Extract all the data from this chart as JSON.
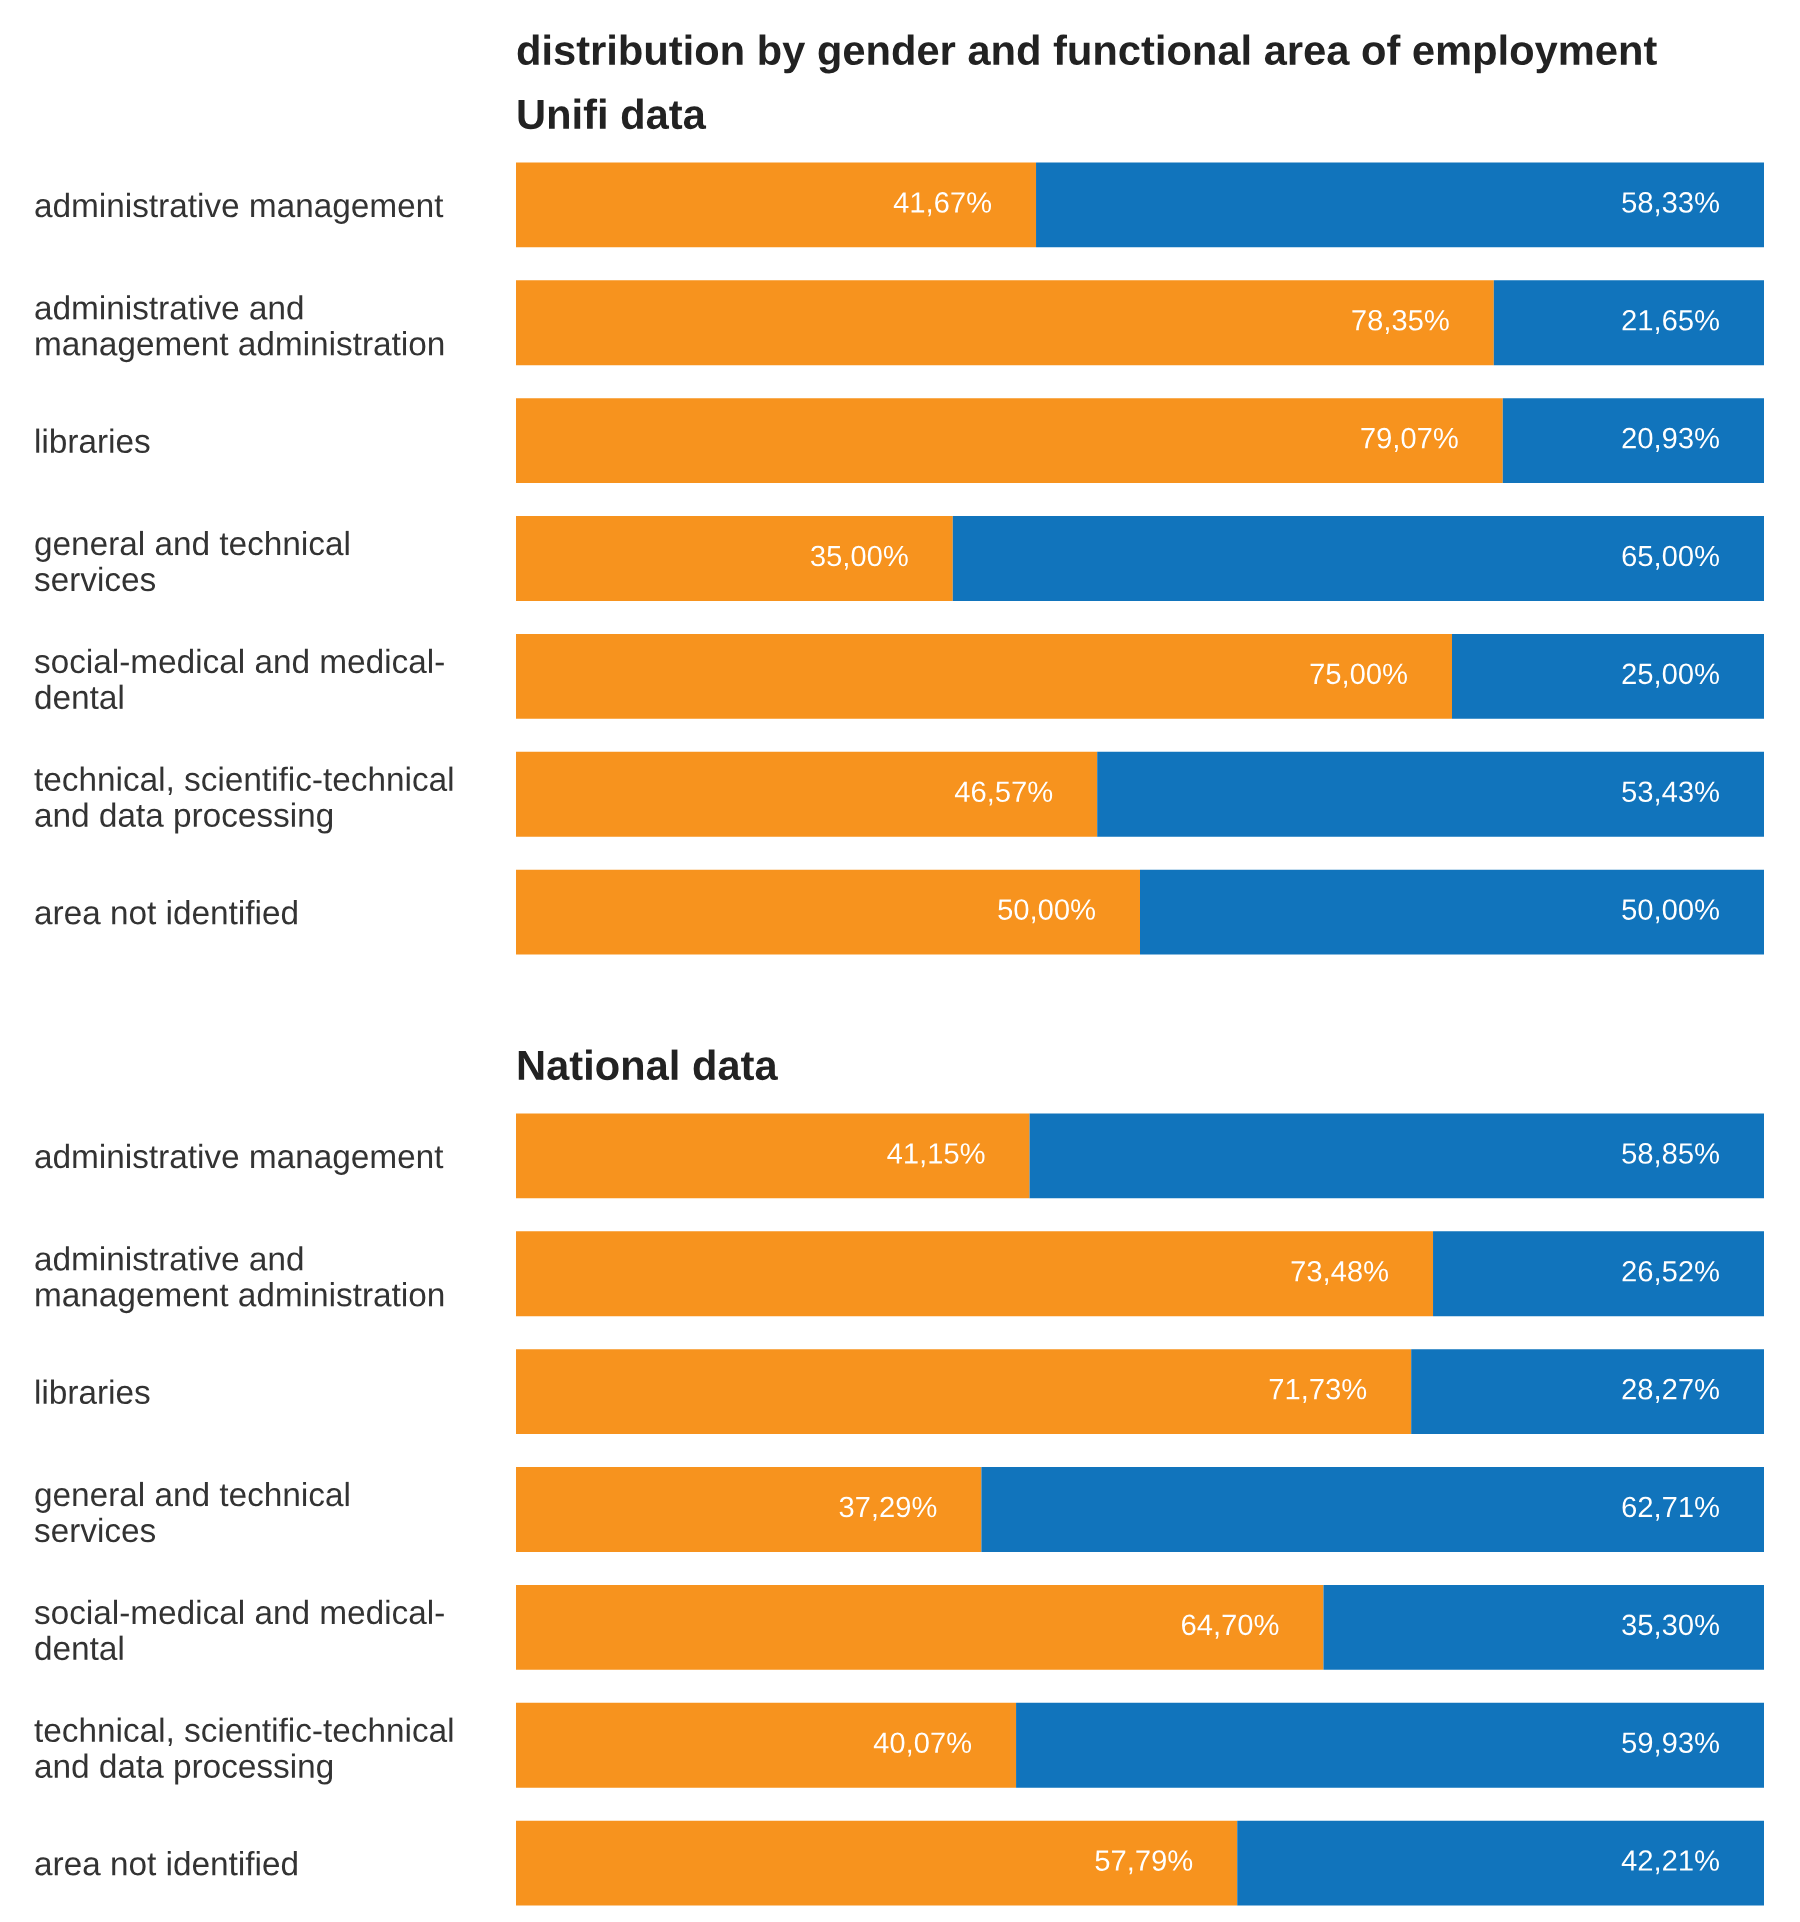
{
  "chart_data": [
    {
      "type": "bar",
      "orientation": "horizontal",
      "stacked": true,
      "title": "distribution by gender and functional area of employment",
      "subtitle": "Unifi data",
      "tick_labels": "y",
      "categories": [
        "administrative management",
        "administrative and\nmanagement administration",
        "libraries",
        "general and technical\nservices",
        "social-medical and medical-\ndental",
        "technical, scientific-technical\nand data processing",
        "area not identified"
      ],
      "series": [
        {
          "color": "#f7931e",
          "values": [
            41.67,
            78.35,
            79.07,
            35.0,
            75.0,
            46.57,
            50.0
          ],
          "value_labels": [
            "41,67%",
            "78,35%",
            "79,07%",
            "35,00%",
            "75,00%",
            "46,57%",
            "50,00%"
          ]
        },
        {
          "color": "#1174bc",
          "values": [
            58.33,
            21.65,
            20.93,
            65.0,
            25.0,
            53.43,
            50.0
          ],
          "value_labels": [
            "58,33%",
            "21,65%",
            "20,93%",
            "65,00%",
            "25,00%",
            "53,43%",
            "50,00%"
          ]
        }
      ]
    },
    {
      "type": "bar",
      "orientation": "horizontal",
      "stacked": true,
      "title": "National data",
      "tick_labels": "y",
      "categories": [
        "administrative management",
        "administrative and\nmanagement administration",
        "libraries",
        "general and technical\nservices",
        "social-medical and medical-\ndental",
        "technical, scientific-technical\nand data processing",
        "area not identified"
      ],
      "series": [
        {
          "color": "#f7931e",
          "values": [
            41.15,
            73.48,
            71.73,
            37.29,
            64.7,
            40.07,
            57.79
          ],
          "value_labels": [
            "41,15%",
            "73,48%",
            "71,73%",
            "37,29%",
            "64,70%",
            "40,07%",
            "57,79%"
          ]
        },
        {
          "color": "#1174bc",
          "values": [
            58.85,
            26.52,
            28.27,
            62.71,
            35.3,
            59.93,
            42.21
          ],
          "value_labels": [
            "58,85%",
            "26,52%",
            "28,27%",
            "62,71%",
            "35,30%",
            "59,93%",
            "42,21%"
          ]
        }
      ]
    }
  ]
}
